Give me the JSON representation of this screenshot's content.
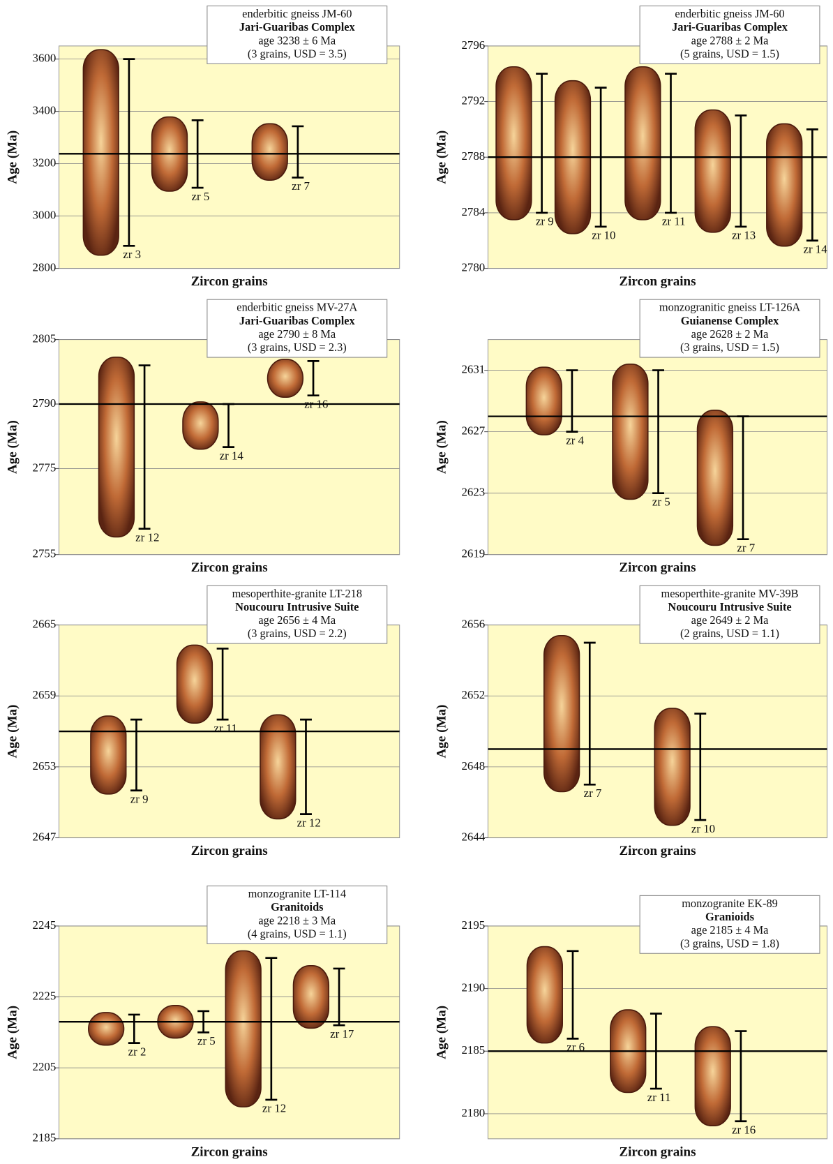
{
  "chart_data": [
    {
      "type": "errorbar",
      "sample": "enderbitic gneiss JM-60",
      "unit": "Jari-Guaribas Complex",
      "age": "age 3238 ± 6 Ma",
      "stats": "(3 grains, USD = 3.5)",
      "mean": 3238,
      "ylabel": "Age (Ma)",
      "xlabel": "Zircon grains",
      "categories": [
        "zr 3",
        "zr 5",
        "zr 7"
      ],
      "values": [
        3243,
        3237,
        3245
      ],
      "errors": [
        357,
        129,
        98
      ],
      "ylim": [
        2800,
        3650
      ],
      "yticks": [
        2800,
        3000,
        3200,
        3400,
        3600
      ],
      "grid": true
    },
    {
      "type": "errorbar",
      "sample": "enderbitic gneiss JM-60",
      "unit": "Jari-Guaribas Complex",
      "age": "age 2788 ± 2 Ma",
      "stats": "(5 grains, USD = 1.5)",
      "mean": 2788,
      "ylabel": "Age (Ma)",
      "xlabel": "Zircon grains",
      "categories": [
        "zr 9",
        "zr 10",
        "zr 11",
        "zr 13",
        "zr 14"
      ],
      "values": [
        2789,
        2788,
        2789,
        2787,
        2786
      ],
      "errors": [
        5,
        5,
        5,
        4,
        4
      ],
      "ylim": [
        2780,
        2796
      ],
      "yticks": [
        2780,
        2784,
        2788,
        2792,
        2796
      ],
      "grid": true
    },
    {
      "type": "errorbar",
      "sample": "enderbitic gneiss MV-27A",
      "unit": "Jari-Guaribas Complex",
      "age": "age 2790 ± 8 Ma",
      "stats": "(3 grains, USD = 2.3)",
      "mean": 2790,
      "ylabel": "Age (Ma)",
      "xlabel": "Zircon grains",
      "categories": [
        "zr 12",
        "zr 14",
        "zr 16"
      ],
      "values": [
        2780,
        2785,
        2796
      ],
      "errors": [
        19,
        5,
        4
      ],
      "ylim": [
        2755,
        2805
      ],
      "yticks": [
        2755,
        2775,
        2790,
        2805
      ],
      "grid": true
    },
    {
      "type": "errorbar",
      "sample": "monzogranitic gneiss LT-126A",
      "unit": "Guianense Complex",
      "age": "age 2628 ± 2 Ma",
      "stats": "(3 grains, USD = 1.5)",
      "mean": 2628,
      "ylabel": "Age (Ma)",
      "xlabel": "Zircon grains",
      "categories": [
        "zr 4",
        "zr 5",
        "zr 7"
      ],
      "values": [
        2629,
        2627,
        2624
      ],
      "errors": [
        2,
        4,
        4
      ],
      "ylim": [
        2619,
        2633
      ],
      "yticks": [
        2619,
        2623,
        2627,
        2631
      ],
      "grid": true
    },
    {
      "type": "errorbar",
      "sample": "mesoperthite-granite LT-218",
      "unit": "Noucouru Intrusive Suite",
      "age": "age 2656 ± 4 Ma",
      "stats": "(3 grains, USD = 2.2)",
      "mean": 2656,
      "ylabel": "Age (Ma)",
      "xlabel": "Zircon grains",
      "categories": [
        "zr 9",
        "zr 11",
        "zr 12"
      ],
      "values": [
        2654,
        2660,
        2653
      ],
      "errors": [
        3,
        3,
        4
      ],
      "ylim": [
        2647,
        2665
      ],
      "yticks": [
        2647,
        2653,
        2659,
        2665
      ],
      "grid": true
    },
    {
      "type": "errorbar",
      "sample": "mesoperthite-granite MV-39B",
      "unit": "Noucouru Intrusive Suite",
      "age": "age 2649 ± 2 Ma",
      "stats": "(2 grains, USD = 1.1)",
      "mean": 2649,
      "ylabel": "Age (Ma)",
      "xlabel": "Zircon grains",
      "categories": [
        "zr 7",
        "zr 10"
      ],
      "values": [
        2651,
        2648
      ],
      "errors": [
        4,
        3
      ],
      "ylim": [
        2644,
        2656
      ],
      "yticks": [
        2644,
        2648,
        2652,
        2656
      ],
      "grid": true
    },
    {
      "type": "errorbar",
      "sample": "monzogranite LT-114",
      "unit": "Granitoids",
      "age": "age 2218 ± 3 Ma",
      "stats": "(4 grains, USD = 1.1)",
      "mean": 2218,
      "ylabel": "Age (Ma)",
      "xlabel": "Zircon grains",
      "categories": [
        "zr 2",
        "zr 5",
        "zr 12",
        "zr 17"
      ],
      "values": [
        2216,
        2218,
        2216,
        2225
      ],
      "errors": [
        4,
        3,
        20,
        8
      ],
      "ylim": [
        2185,
        2245
      ],
      "yticks": [
        2185,
        2205,
        2225,
        2245
      ],
      "grid": true
    },
    {
      "type": "errorbar",
      "sample": "monzogranite EK-89",
      "unit": "Granioids",
      "age": "age 2185 ± 4 Ma",
      "stats": "(3 grains, USD = 1.8)",
      "mean": 2185,
      "ylabel": "Age (Ma)",
      "xlabel": "Zircon grains",
      "categories": [
        "zr 6",
        "zr 11",
        "zr 16"
      ],
      "values": [
        2189.5,
        2185,
        2183
      ],
      "errors": [
        3.5,
        3,
        3.6
      ],
      "ylim": [
        2178,
        2195
      ],
      "yticks": [
        2180,
        2185,
        2190,
        2195
      ],
      "grid": true
    }
  ]
}
